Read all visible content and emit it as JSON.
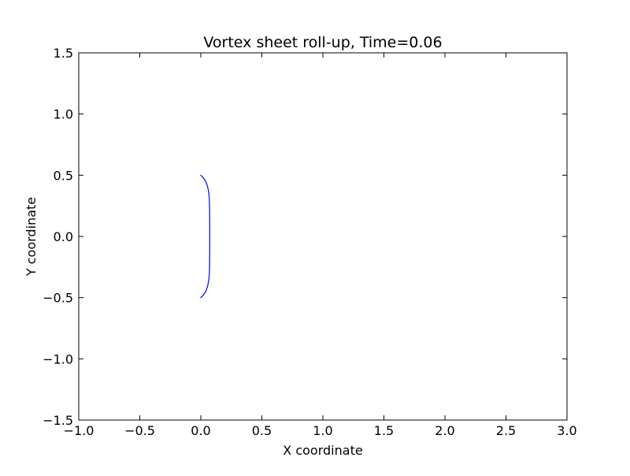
{
  "chart_data": {
    "type": "line",
    "title": "Vortex sheet roll-up, Time=0.06",
    "xlabel": "X coordinate",
    "ylabel": "Y coordinate",
    "xlim": [
      -1.0,
      3.0
    ],
    "ylim": [
      -1.5,
      1.5
    ],
    "xticks": [
      -1.0,
      -0.5,
      0.0,
      0.5,
      1.0,
      1.5,
      2.0,
      2.5,
      3.0
    ],
    "yticks": [
      -1.5,
      -1.0,
      -0.5,
      0.0,
      0.5,
      1.0,
      1.5
    ],
    "xtick_labels": [
      "−1.0",
      "−0.5",
      "0.0",
      "0.5",
      "1.0",
      "1.5",
      "2.0",
      "2.5",
      "3.0"
    ],
    "ytick_labels": [
      "−1.5",
      "−1.0",
      "−0.5",
      "0.0",
      "0.5",
      "1.0",
      "1.5"
    ],
    "grid": false,
    "series": [
      {
        "color": "#0000ff",
        "x": [
          0.0,
          0.02,
          0.04,
          0.055,
          0.065,
          0.07,
          0.072,
          0.073,
          0.073,
          0.073,
          0.073,
          0.073,
          0.072,
          0.07,
          0.065,
          0.055,
          0.04,
          0.02,
          0.0
        ],
        "y": [
          0.5,
          0.48,
          0.45,
          0.41,
          0.36,
          0.3,
          0.22,
          0.12,
          0.05,
          0.0,
          -0.05,
          -0.12,
          -0.22,
          -0.3,
          -0.36,
          -0.41,
          -0.45,
          -0.48,
          -0.5
        ]
      }
    ]
  }
}
